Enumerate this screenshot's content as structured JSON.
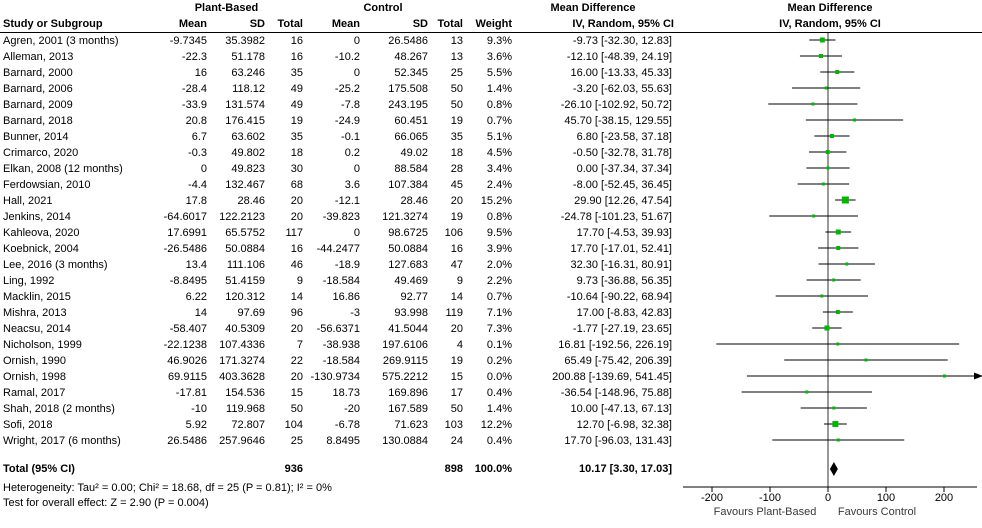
{
  "header": {
    "study_col": "Study or Subgroup",
    "group_experimental": "Plant-Based",
    "group_control": "Control",
    "mean": "Mean",
    "sd": "SD",
    "total": "Total",
    "weight": "Weight",
    "md_title": "Mean Difference",
    "md_subtitle": "IV, Random, 95% CI"
  },
  "chart_data": {
    "type": "forest",
    "effect_measure": "Mean Difference, IV, Random, 95% CI",
    "axis": {
      "ticks": [
        -200,
        -100,
        0,
        100,
        200
      ],
      "range": [
        -250,
        255
      ],
      "label_left": "Favours Plant-Based",
      "label_right": "Favours Control"
    },
    "marker_color": "#00b800",
    "studies": [
      {
        "name": "Agren, 2001 (3 months)",
        "pb_mean": "-9.7345",
        "pb_sd": "35.3982",
        "pb_total": "16",
        "c_mean": "0",
        "c_sd": "26.5486",
        "c_total": "13",
        "weight": "9.3%",
        "md": -9.73,
        "lo": -32.3,
        "hi": 12.83,
        "ci": "-9.73 [-32.30, 12.83]"
      },
      {
        "name": "Alleman, 2013",
        "pb_mean": "-22.3",
        "pb_sd": "51.178",
        "pb_total": "16",
        "c_mean": "-10.2",
        "c_sd": "48.267",
        "c_total": "13",
        "weight": "3.6%",
        "md": -12.1,
        "lo": -48.39,
        "hi": 24.19,
        "ci": "-12.10 [-48.39, 24.19]"
      },
      {
        "name": "Barnard, 2000",
        "pb_mean": "16",
        "pb_sd": "63.246",
        "pb_total": "35",
        "c_mean": "0",
        "c_sd": "52.345",
        "c_total": "25",
        "weight": "5.5%",
        "md": 16.0,
        "lo": -13.33,
        "hi": 45.33,
        "ci": "16.00 [-13.33, 45.33]"
      },
      {
        "name": "Barnard, 2006",
        "pb_mean": "-28.4",
        "pb_sd": "118.12",
        "pb_total": "49",
        "c_mean": "-25.2",
        "c_sd": "175.508",
        "c_total": "50",
        "weight": "1.4%",
        "md": -3.2,
        "lo": -62.03,
        "hi": 55.63,
        "ci": "-3.20 [-62.03, 55.63]"
      },
      {
        "name": "Barnard, 2009",
        "pb_mean": "-33.9",
        "pb_sd": "131.574",
        "pb_total": "49",
        "c_mean": "-7.8",
        "c_sd": "243.195",
        "c_total": "50",
        "weight": "0.8%",
        "md": -26.1,
        "lo": -102.92,
        "hi": 50.72,
        "ci": "-26.10 [-102.92, 50.72]"
      },
      {
        "name": "Barnard, 2018",
        "pb_mean": "20.8",
        "pb_sd": "176.415",
        "pb_total": "19",
        "c_mean": "-24.9",
        "c_sd": "60.451",
        "c_total": "19",
        "weight": "0.7%",
        "md": 45.7,
        "lo": -38.15,
        "hi": 129.55,
        "ci": "45.70 [-38.15, 129.55]"
      },
      {
        "name": "Bunner, 2014",
        "pb_mean": "6.7",
        "pb_sd": "63.602",
        "pb_total": "35",
        "c_mean": "-0.1",
        "c_sd": "66.065",
        "c_total": "35",
        "weight": "5.1%",
        "md": 6.8,
        "lo": -23.58,
        "hi": 37.18,
        "ci": "6.80 [-23.58, 37.18]"
      },
      {
        "name": "Crimarco, 2020",
        "pb_mean": "-0.3",
        "pb_sd": "49.802",
        "pb_total": "18",
        "c_mean": "0.2",
        "c_sd": "49.02",
        "c_total": "18",
        "weight": "4.5%",
        "md": -0.5,
        "lo": -32.78,
        "hi": 31.78,
        "ci": "-0.50 [-32.78, 31.78]"
      },
      {
        "name": "Elkan, 2008 (12 months)",
        "pb_mean": "0",
        "pb_sd": "49.823",
        "pb_total": "30",
        "c_mean": "0",
        "c_sd": "88.584",
        "c_total": "28",
        "weight": "3.4%",
        "md": 0.0,
        "lo": -37.34,
        "hi": 37.34,
        "ci": "0.00 [-37.34, 37.34]"
      },
      {
        "name": "Ferdowsian, 2010",
        "pb_mean": "-4.4",
        "pb_sd": "132.467",
        "pb_total": "68",
        "c_mean": "3.6",
        "c_sd": "107.384",
        "c_total": "45",
        "weight": "2.4%",
        "md": -8.0,
        "lo": -52.45,
        "hi": 36.45,
        "ci": "-8.00 [-52.45, 36.45]"
      },
      {
        "name": "Hall, 2021",
        "pb_mean": "17.8",
        "pb_sd": "28.46",
        "pb_total": "20",
        "c_mean": "-12.1",
        "c_sd": "28.46",
        "c_total": "20",
        "weight": "15.2%",
        "md": 29.9,
        "lo": 12.26,
        "hi": 47.54,
        "ci": "29.90 [12.26, 47.54]"
      },
      {
        "name": "Jenkins, 2014",
        "pb_mean": "-64.6017",
        "pb_sd": "122.2123",
        "pb_total": "20",
        "c_mean": "-39.823",
        "c_sd": "121.3274",
        "c_total": "19",
        "weight": "0.8%",
        "md": -24.78,
        "lo": -101.23,
        "hi": 51.67,
        "ci": "-24.78 [-101.23, 51.67]"
      },
      {
        "name": "Kahleova, 2020",
        "pb_mean": "17.6991",
        "pb_sd": "65.5752",
        "pb_total": "117",
        "c_mean": "0",
        "c_sd": "98.6725",
        "c_total": "106",
        "weight": "9.5%",
        "md": 17.7,
        "lo": -4.53,
        "hi": 39.93,
        "ci": "17.70 [-4.53, 39.93]"
      },
      {
        "name": "Koebnick, 2004",
        "pb_mean": "-26.5486",
        "pb_sd": "50.0884",
        "pb_total": "16",
        "c_mean": "-44.2477",
        "c_sd": "50.0884",
        "c_total": "16",
        "weight": "3.9%",
        "md": 17.7,
        "lo": -17.01,
        "hi": 52.41,
        "ci": "17.70 [-17.01, 52.41]"
      },
      {
        "name": "Lee, 2016 (3 months)",
        "pb_mean": "13.4",
        "pb_sd": "111.106",
        "pb_total": "46",
        "c_mean": "-18.9",
        "c_sd": "127.683",
        "c_total": "47",
        "weight": "2.0%",
        "md": 32.3,
        "lo": -16.31,
        "hi": 80.91,
        "ci": "32.30 [-16.31, 80.91]"
      },
      {
        "name": "Ling, 1992",
        "pb_mean": "-8.8495",
        "pb_sd": "51.4159",
        "pb_total": "9",
        "c_mean": "-18.584",
        "c_sd": "49.469",
        "c_total": "9",
        "weight": "2.2%",
        "md": 9.73,
        "lo": -36.88,
        "hi": 56.35,
        "ci": "9.73 [-36.88, 56.35]"
      },
      {
        "name": "Macklin, 2015",
        "pb_mean": "6.22",
        "pb_sd": "120.312",
        "pb_total": "14",
        "c_mean": "16.86",
        "c_sd": "92.77",
        "c_total": "14",
        "weight": "0.7%",
        "md": -10.64,
        "lo": -90.22,
        "hi": 68.94,
        "ci": "-10.64 [-90.22, 68.94]"
      },
      {
        "name": "Mishra, 2013",
        "pb_mean": "14",
        "pb_sd": "97.69",
        "pb_total": "96",
        "c_mean": "-3",
        "c_sd": "93.998",
        "c_total": "119",
        "weight": "7.1%",
        "md": 17.0,
        "lo": -8.83,
        "hi": 42.83,
        "ci": "17.00 [-8.83, 42.83]"
      },
      {
        "name": "Neacsu, 2014",
        "pb_mean": "-58.407",
        "pb_sd": "40.5309",
        "pb_total": "20",
        "c_mean": "-56.6371",
        "c_sd": "41.5044",
        "c_total": "20",
        "weight": "7.3%",
        "md": -1.77,
        "lo": -27.19,
        "hi": 23.65,
        "ci": "-1.77 [-27.19, 23.65]"
      },
      {
        "name": "Nicholson, 1999",
        "pb_mean": "-22.1238",
        "pb_sd": "107.4336",
        "pb_total": "7",
        "c_mean": "-38.938",
        "c_sd": "197.6106",
        "c_total": "4",
        "weight": "0.1%",
        "md": 16.81,
        "lo": -192.56,
        "hi": 226.19,
        "ci": "16.81 [-192.56, 226.19]"
      },
      {
        "name": "Ornish, 1990",
        "pb_mean": "46.9026",
        "pb_sd": "171.3274",
        "pb_total": "22",
        "c_mean": "-18.584",
        "c_sd": "269.9115",
        "c_total": "19",
        "weight": "0.2%",
        "md": 65.49,
        "lo": -75.42,
        "hi": 206.39,
        "ci": "65.49 [-75.42, 206.39]"
      },
      {
        "name": "Ornish, 1998",
        "pb_mean": "69.9115",
        "pb_sd": "403.3628",
        "pb_total": "20",
        "c_mean": "-130.9734",
        "c_sd": "575.2212",
        "c_total": "15",
        "weight": "0.0%",
        "md": 200.88,
        "lo": -139.69,
        "hi": 541.45,
        "ci": "200.88 [-139.69, 541.45]"
      },
      {
        "name": "Ramal, 2017",
        "pb_mean": "-17.81",
        "pb_sd": "154.536",
        "pb_total": "15",
        "c_mean": "18.73",
        "c_sd": "169.896",
        "c_total": "17",
        "weight": "0.4%",
        "md": -36.54,
        "lo": -148.96,
        "hi": 75.88,
        "ci": "-36.54 [-148.96, 75.88]"
      },
      {
        "name": "Shah, 2018 (2 months)",
        "pb_mean": "-10",
        "pb_sd": "119.968",
        "pb_total": "50",
        "c_mean": "-20",
        "c_sd": "167.589",
        "c_total": "50",
        "weight": "1.4%",
        "md": 10.0,
        "lo": -47.13,
        "hi": 67.13,
        "ci": "10.00 [-47.13, 67.13]"
      },
      {
        "name": "Sofi, 2018",
        "pb_mean": "5.92",
        "pb_sd": "72.807",
        "pb_total": "104",
        "c_mean": "-6.78",
        "c_sd": "71.623",
        "c_total": "103",
        "weight": "12.2%",
        "md": 12.7,
        "lo": -6.98,
        "hi": 32.38,
        "ci": "12.70 [-6.98, 32.38]"
      },
      {
        "name": "Wright, 2017 (6 months)",
        "pb_mean": "26.5486",
        "pb_sd": "257.9646",
        "pb_total": "25",
        "c_mean": "8.8495",
        "c_sd": "130.0884",
        "c_total": "24",
        "weight": "0.4%",
        "md": 17.7,
        "lo": -96.03,
        "hi": 131.43,
        "ci": "17.70 [-96.03, 131.43]"
      }
    ],
    "total": {
      "label": "Total (95% CI)",
      "pb_total": "936",
      "c_total": "898",
      "weight": "100.0%",
      "md": 10.17,
      "lo": 3.3,
      "hi": 17.03,
      "ci": "10.17 [3.30, 17.03]"
    },
    "footnotes": {
      "heterogeneity": "Heterogeneity: Tau² = 0.00; Chi² = 18.68, df = 25 (P = 0.81); I² = 0%",
      "overall_effect": "Test for overall effect: Z = 2.90 (P = 0.004)"
    }
  }
}
